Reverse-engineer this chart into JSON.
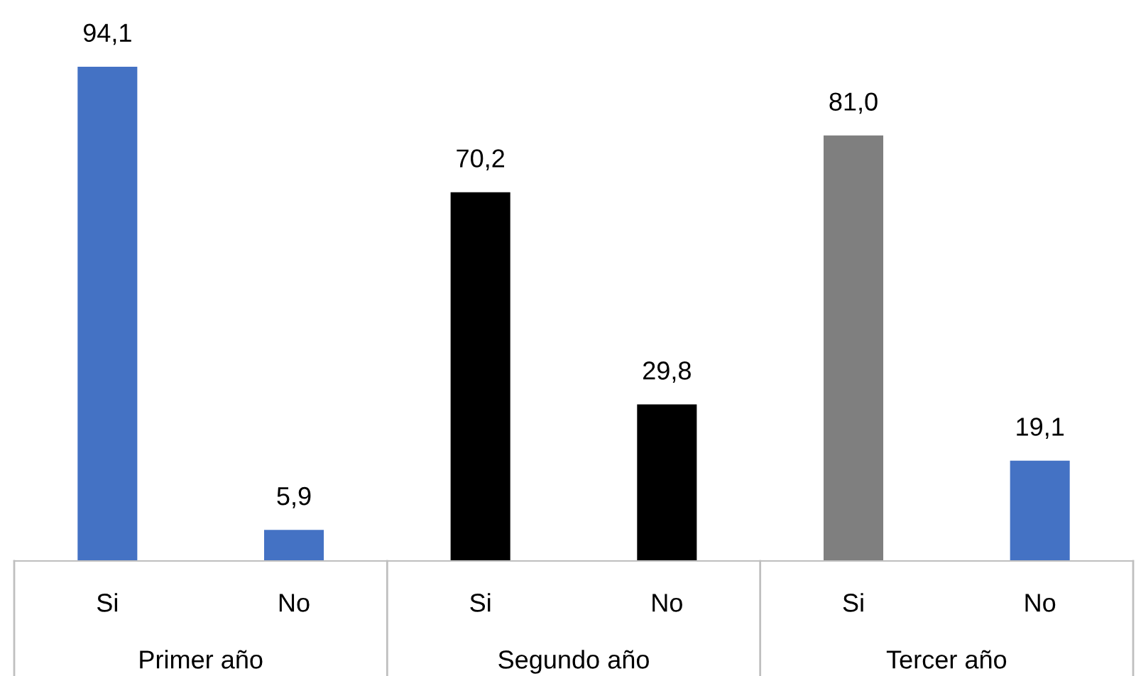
{
  "chart_data": {
    "type": "bar",
    "categories": [
      "Si",
      "No",
      "Si",
      "No",
      "Si",
      "No"
    ],
    "values": [
      94.1,
      5.9,
      70.2,
      29.8,
      81.0,
      19.1
    ],
    "value_labels": [
      "94,1",
      "5,9",
      "70,2",
      "29,8",
      "81,0",
      "19,1"
    ],
    "colors": [
      "#4472c4",
      "#4472c4",
      "#000000",
      "#000000",
      "#7f7f7f",
      "#4472c4"
    ],
    "annotations": [
      "Primer año",
      "Segundo año",
      "Tercer año"
    ]
  }
}
